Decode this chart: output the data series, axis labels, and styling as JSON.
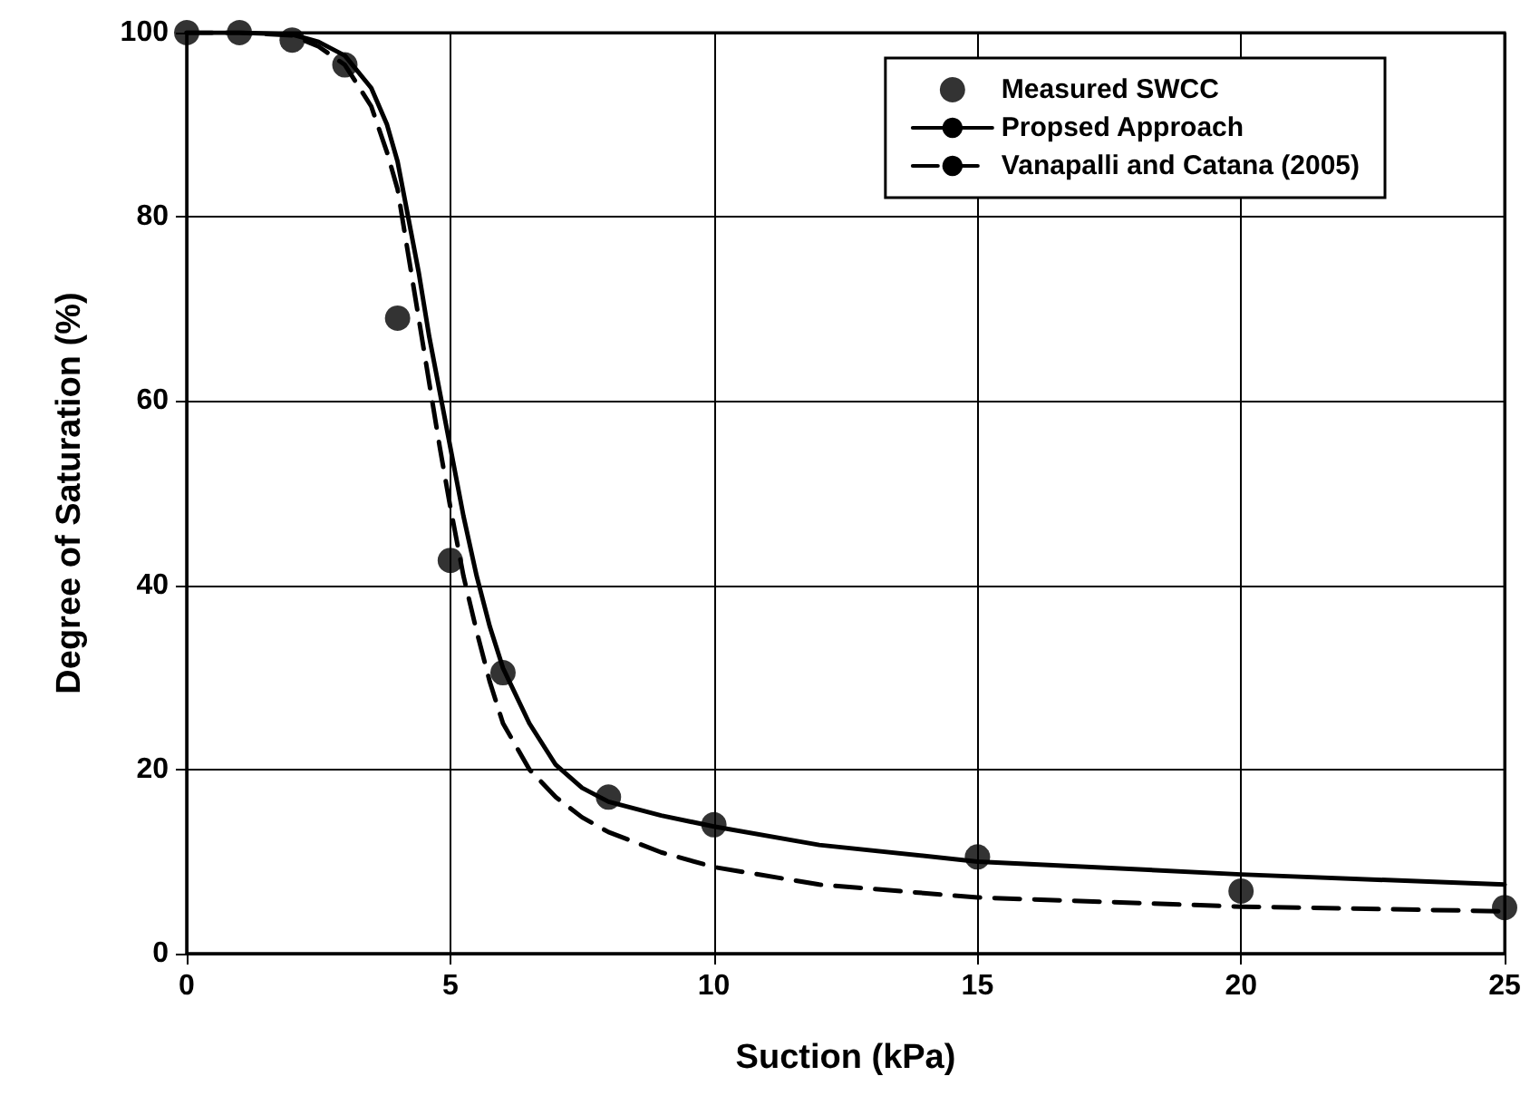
{
  "chart_data": {
    "type": "line",
    "xlabel": "Suction (kPa)",
    "ylabel": "Degree of Saturation (%)",
    "xlim": [
      0,
      25
    ],
    "xticks": [
      0,
      5,
      10,
      15,
      20,
      25
    ],
    "ylim": [
      0,
      100
    ],
    "yticks": [
      0,
      20,
      40,
      60,
      80,
      100
    ],
    "grid": true,
    "legend": "top right",
    "series": [
      {
        "name": "Measured SWCC",
        "type": "scatter",
        "marker": "circle",
        "color": "#000000",
        "x": [
          0,
          1,
          2,
          3,
          4,
          5,
          6,
          8,
          10,
          15,
          20,
          25
        ],
        "values": [
          100,
          100,
          99.2,
          96.5,
          69,
          42.7,
          30.5,
          17,
          14,
          10.5,
          6.8,
          5
        ]
      },
      {
        "name": "Propsed Approach",
        "type": "line",
        "marker": "none",
        "line_style": "solid",
        "color": "#000000",
        "x": [
          0,
          1,
          2,
          2.5,
          3,
          3.5,
          3.8,
          4,
          4.2,
          4.4,
          4.6,
          4.8,
          5,
          5.25,
          5.5,
          5.75,
          6,
          6.5,
          7,
          7.5,
          8,
          9,
          10,
          12,
          15,
          20,
          25
        ],
        "values": [
          100,
          100,
          99.8,
          99,
          97.5,
          94,
          90,
          86,
          80,
          74,
          67,
          61,
          55,
          47.5,
          41,
          35.5,
          31,
          25,
          20.5,
          18,
          16.5,
          15,
          13.8,
          11.8,
          10,
          8.6,
          7.5
        ]
      },
      {
        "name": "Vanapalli and Catana (2005)",
        "type": "line",
        "marker": "none",
        "line_style": "dashed",
        "color": "#000000",
        "x": [
          0,
          1,
          2,
          2.5,
          3,
          3.5,
          3.8,
          4,
          4.2,
          4.4,
          4.6,
          4.8,
          5,
          5.25,
          5.5,
          5.75,
          6,
          6.5,
          7,
          7.5,
          8,
          9,
          10,
          12,
          15,
          20,
          25
        ],
        "values": [
          100,
          100,
          99.7,
          98.5,
          96.5,
          92,
          87,
          83,
          76,
          69,
          62,
          55,
          48.5,
          41,
          35,
          29.5,
          25,
          20,
          17,
          14.8,
          13.2,
          11,
          9.4,
          7.5,
          6.1,
          5.1,
          4.6
        ]
      }
    ]
  }
}
